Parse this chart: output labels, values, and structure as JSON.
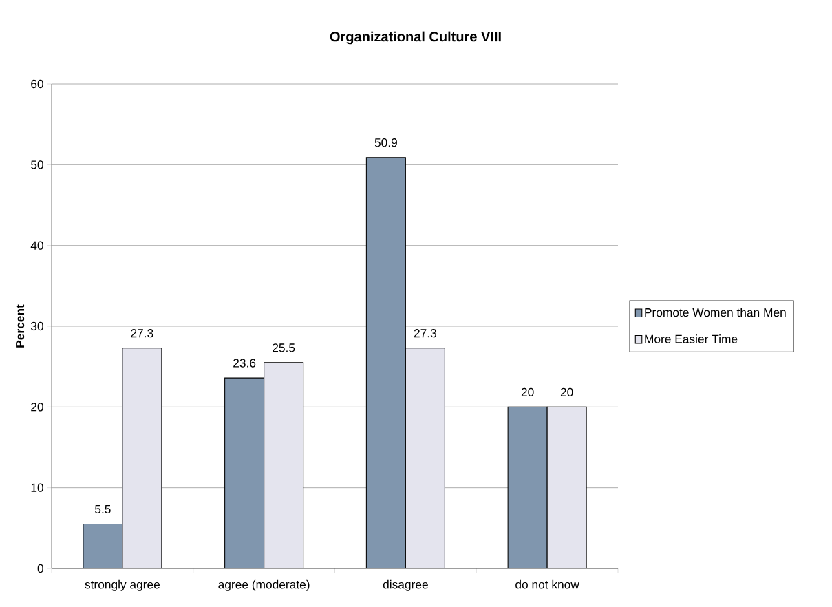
{
  "chart_data": {
    "type": "bar",
    "title": "Organizational Culture VIII",
    "ylabel": "Percent",
    "categories": [
      "strongly agree",
      "agree (moderate)",
      "disagree",
      "do not know"
    ],
    "series": [
      {
        "name": "Promote Women than Men",
        "color": "#8096ae",
        "values": [
          5.5,
          23.6,
          50.9,
          20
        ]
      },
      {
        "name": "More Easier Time",
        "color": "#e4e4ee",
        "values": [
          27.3,
          25.5,
          27.3,
          20
        ]
      }
    ],
    "ylim": [
      0,
      60
    ],
    "yticks": [
      0,
      10,
      20,
      30,
      40,
      50,
      60
    ],
    "grid": "y",
    "legend": "right",
    "data_labels": true
  }
}
